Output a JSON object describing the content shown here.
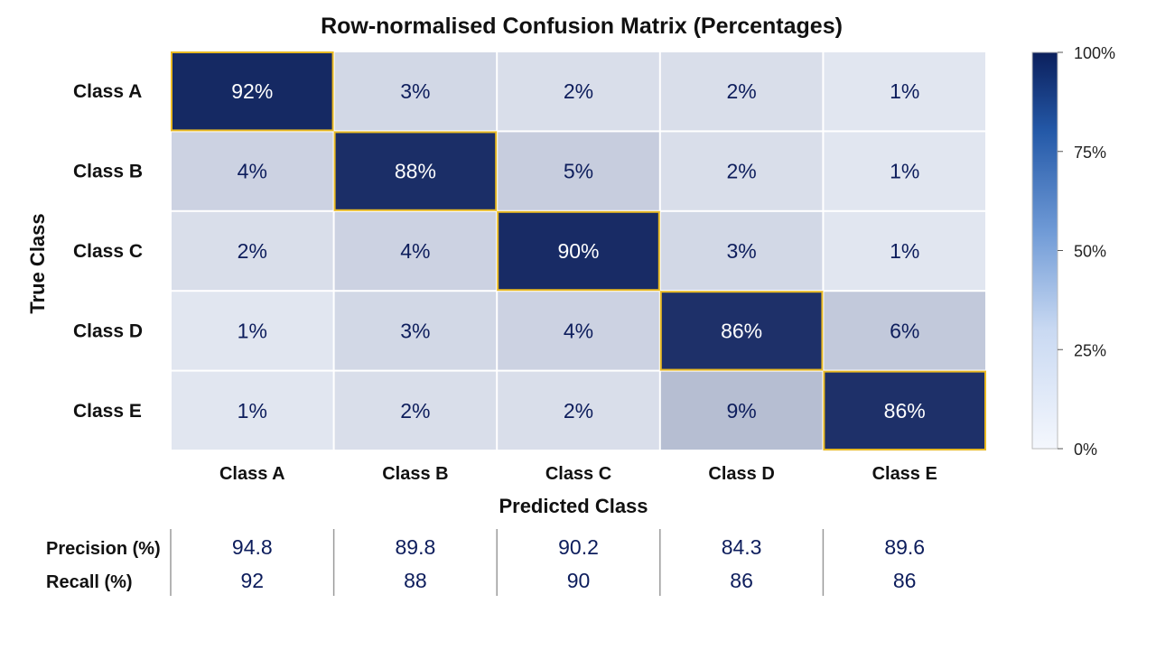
{
  "chart_data": {
    "type": "heatmap",
    "title": "Row-normalised Confusion Matrix (Percentages)",
    "xlabel": "Predicted Class",
    "ylabel": "True Class",
    "x_categories": [
      "Class A",
      "Class B",
      "Class C",
      "Class D",
      "Class E"
    ],
    "y_categories": [
      "Class A",
      "Class B",
      "Class C",
      "Class D",
      "Class E"
    ],
    "values": [
      [
        92,
        3,
        2,
        2,
        1
      ],
      [
        4,
        88,
        5,
        2,
        1
      ],
      [
        2,
        4,
        90,
        3,
        1
      ],
      [
        1,
        3,
        4,
        86,
        6
      ],
      [
        1,
        2,
        2,
        9,
        86
      ]
    ],
    "value_suffix": "%",
    "colorbar": {
      "range": [
        0,
        100
      ],
      "ticks": [
        "100%",
        "75%",
        "50%",
        "25%",
        "0%"
      ],
      "tick_values": [
        100,
        75,
        50,
        25,
        0
      ],
      "colors": {
        "low": "#f4f7fd",
        "high": "#0b1f5c"
      }
    },
    "diagonal_highlight_color": "#e8b923",
    "metrics": {
      "precision_label": "Precision (%)",
      "recall_label": "Recall (%)",
      "precision": [
        "94.8",
        "89.8",
        "90.2",
        "84.3",
        "89.6"
      ],
      "recall": [
        "92",
        "88",
        "90",
        "86",
        "86"
      ]
    }
  }
}
